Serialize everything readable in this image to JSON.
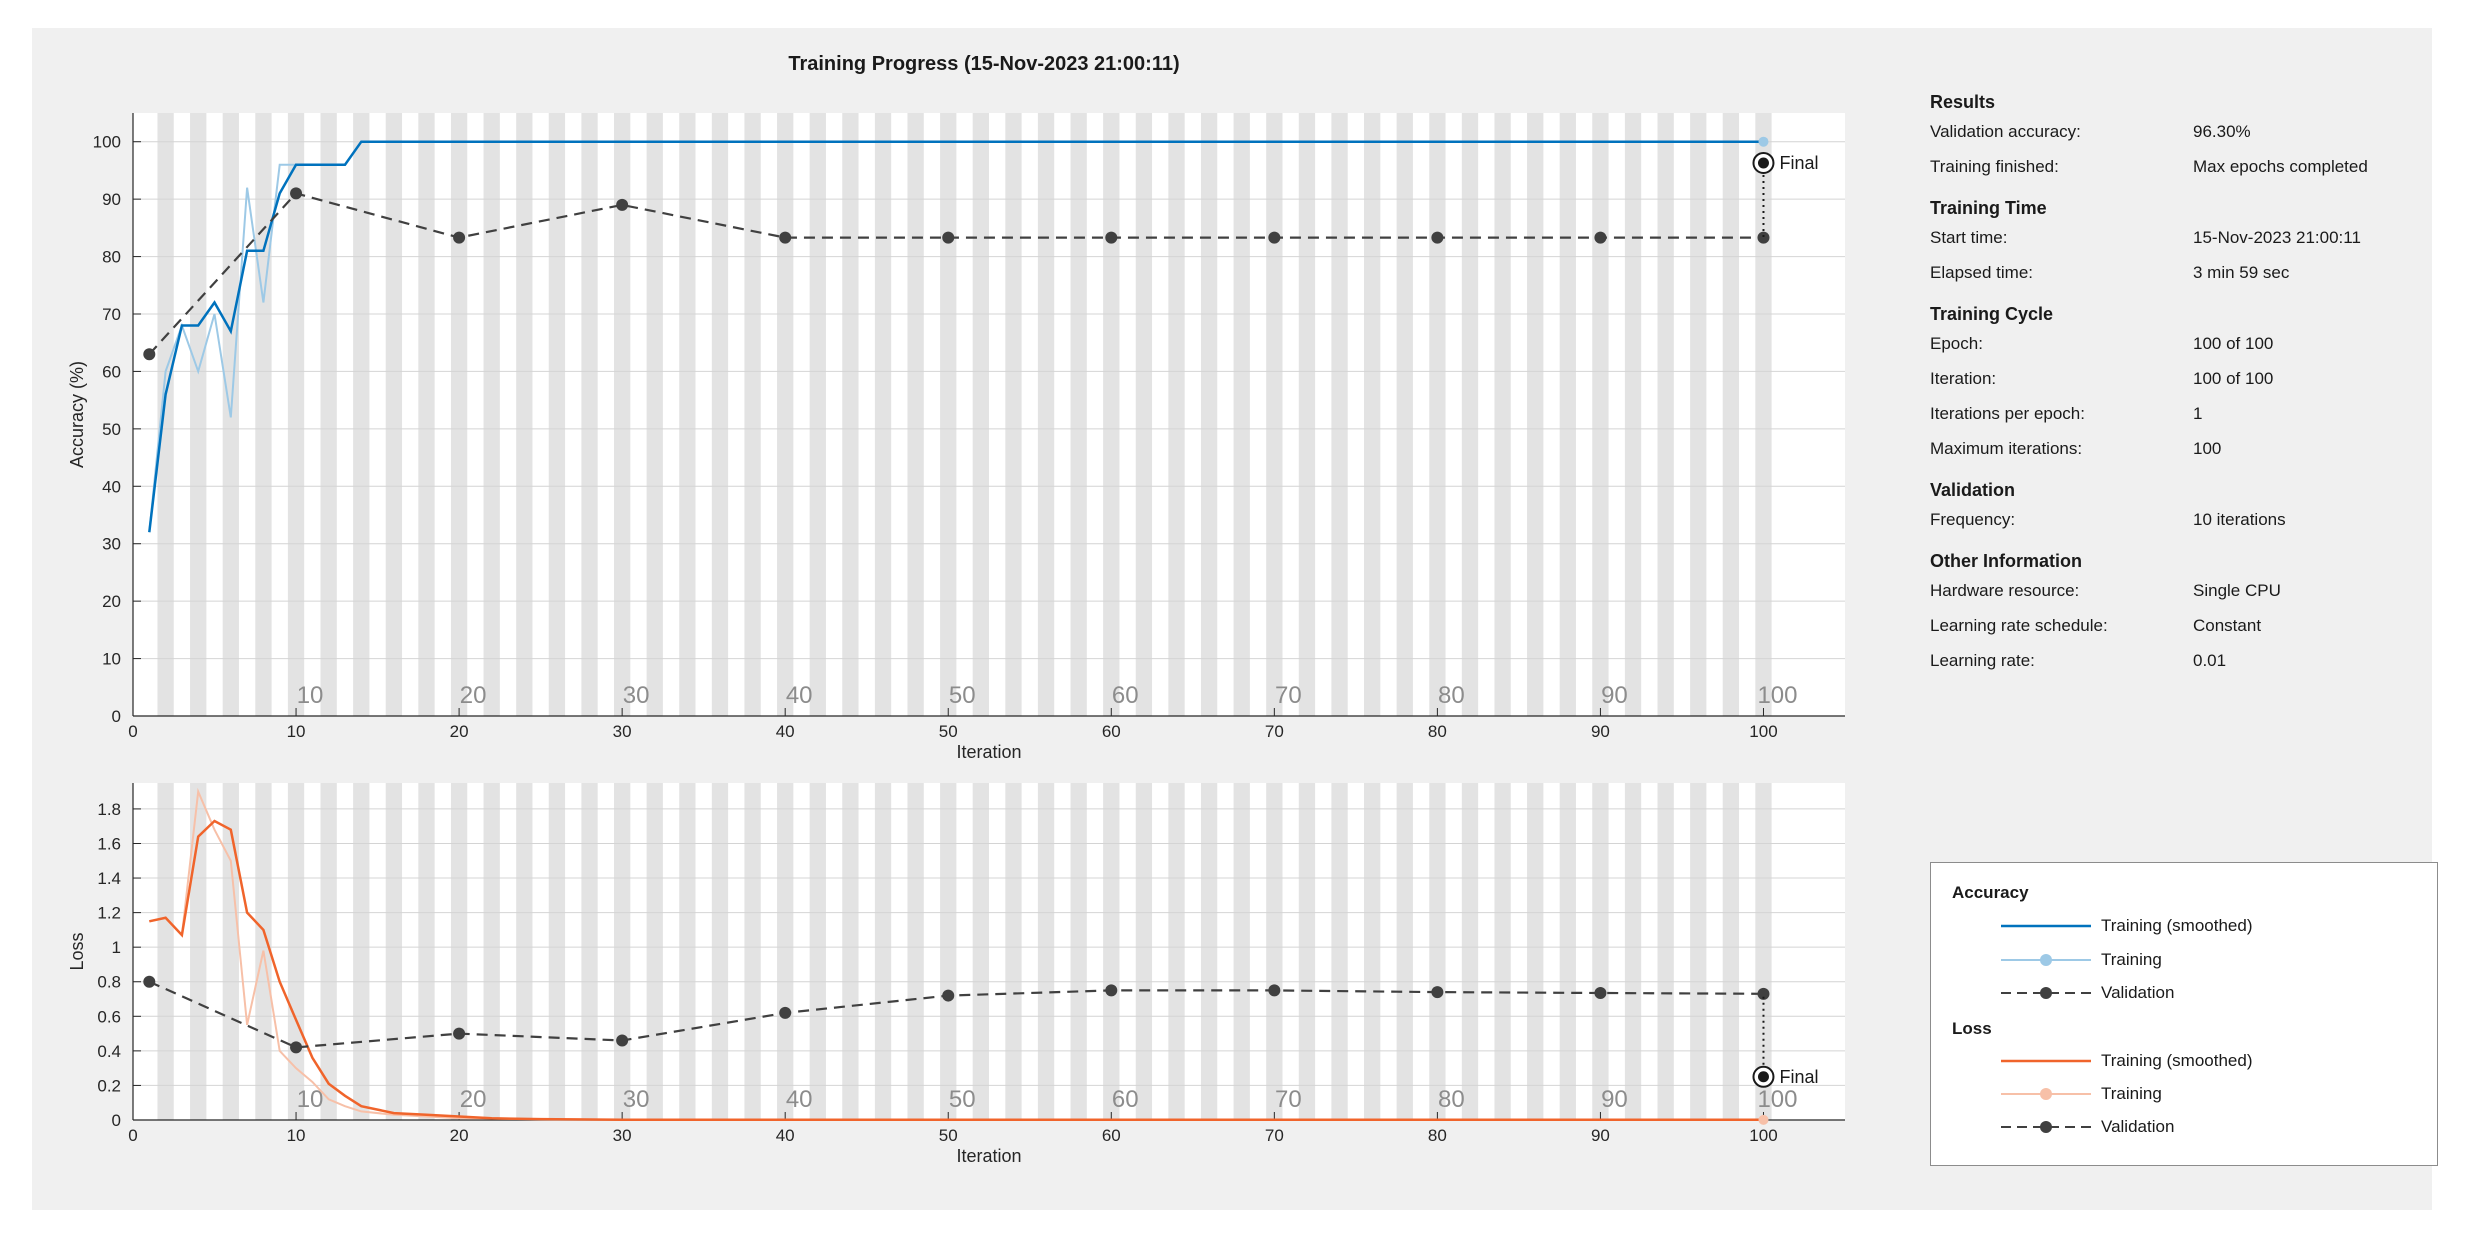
{
  "title": "Training Progress (15-Nov-2023 21:00:11)",
  "colors": {
    "accuracy_smoothed": "#0072bd",
    "accuracy_training": "#9dc9e6",
    "loss_smoothed": "#f0642b",
    "loss_training": "#f7c0a8",
    "validation": "#404040",
    "epoch_band": "#e3e3e3"
  },
  "chart_data": [
    {
      "type": "line",
      "name": "accuracy",
      "xlabel": "Iteration",
      "ylabel": "Accuracy (%)",
      "xlim": [
        0,
        105
      ],
      "ylim": [
        0,
        105
      ],
      "xticks": [
        0,
        10,
        20,
        30,
        40,
        50,
        60,
        70,
        80,
        90,
        100
      ],
      "yticks": [
        0,
        10,
        20,
        30,
        40,
        50,
        60,
        70,
        80,
        90,
        100
      ],
      "epoch_labels": [
        "10",
        "20",
        "30",
        "40",
        "50",
        "60",
        "70",
        "80",
        "90",
        "100"
      ],
      "final_label": "Final",
      "final_value": 96.3,
      "series": [
        {
          "name": "Training (smoothed)",
          "x": [
            1,
            2,
            3,
            4,
            5,
            6,
            7,
            8,
            9,
            10,
            11,
            12,
            13,
            14,
            100
          ],
          "y": [
            32,
            56,
            68,
            68,
            72,
            67,
            81,
            81,
            91,
            96,
            96,
            96,
            96,
            100,
            100
          ]
        },
        {
          "name": "Training",
          "x": [
            1,
            2,
            3,
            4,
            5,
            6,
            7,
            8,
            9,
            10,
            11,
            12,
            13,
            14,
            100
          ],
          "y": [
            32,
            60,
            68,
            60,
            70,
            52,
            92,
            72,
            96,
            96,
            96,
            96,
            96,
            100,
            100
          ]
        },
        {
          "name": "Validation",
          "x": [
            1,
            10,
            20,
            30,
            40,
            50,
            60,
            70,
            80,
            90,
            100
          ],
          "y": [
            63,
            91,
            83.3,
            89,
            83.3,
            83.3,
            83.3,
            83.3,
            83.3,
            83.3,
            83.3
          ]
        }
      ]
    },
    {
      "type": "line",
      "name": "loss",
      "xlabel": "Iteration",
      "ylabel": "Loss",
      "xlim": [
        0,
        105
      ],
      "ylim": [
        0,
        1.95
      ],
      "xticks": [
        0,
        10,
        20,
        30,
        40,
        50,
        60,
        70,
        80,
        90,
        100
      ],
      "yticks": [
        0,
        0.2,
        0.4,
        0.6,
        0.8,
        1,
        1.2,
        1.4,
        1.6,
        1.8
      ],
      "ytick_labels": [
        "0",
        "0.2",
        "0.4",
        "0.6",
        "0.8",
        "1",
        "1.2",
        "1.4",
        "1.6",
        "1.8"
      ],
      "epoch_labels": [
        "10",
        "20",
        "30",
        "40",
        "50",
        "60",
        "70",
        "80",
        "90",
        "100"
      ],
      "final_label": "Final",
      "final_value": 0.25,
      "series": [
        {
          "name": "Training (smoothed)",
          "x": [
            1,
            2,
            3,
            4,
            5,
            6,
            7,
            8,
            9,
            10,
            11,
            12,
            13,
            14,
            16,
            18,
            20,
            22,
            25,
            30,
            40,
            50,
            60,
            70,
            80,
            90,
            100
          ],
          "y": [
            1.15,
            1.17,
            1.07,
            1.64,
            1.73,
            1.68,
            1.2,
            1.1,
            0.8,
            0.58,
            0.36,
            0.21,
            0.14,
            0.08,
            0.04,
            0.03,
            0.02,
            0.01,
            0.005,
            0.002,
            0.001,
            0.001,
            0.001,
            0.001,
            0.001,
            0.001,
            0.001
          ]
        },
        {
          "name": "Training",
          "x": [
            1,
            2,
            3,
            4,
            5,
            6,
            7,
            8,
            9,
            10,
            11,
            12,
            13,
            14,
            16,
            18,
            20,
            25,
            30,
            40,
            50,
            60,
            70,
            80,
            90,
            100
          ],
          "y": [
            1.15,
            1.17,
            1.07,
            1.9,
            1.68,
            1.5,
            0.55,
            0.98,
            0.4,
            0.3,
            0.22,
            0.12,
            0.08,
            0.05,
            0.03,
            0.02,
            0.01,
            0.005,
            0.002,
            0.001,
            0.001,
            0.001,
            0.001,
            0.001,
            0.001,
            0.001
          ]
        },
        {
          "name": "Validation",
          "x": [
            1,
            10,
            20,
            30,
            40,
            50,
            60,
            70,
            80,
            90,
            100
          ],
          "y": [
            0.8,
            0.42,
            0.5,
            0.46,
            0.62,
            0.72,
            0.75,
            0.75,
            0.74,
            0.735,
            0.73
          ]
        }
      ]
    }
  ],
  "results": {
    "sections": [
      {
        "title": "Results",
        "rows": [
          {
            "key": "Validation accuracy:",
            "value": "96.30%"
          },
          {
            "key": "Training finished:",
            "value": "Max epochs completed"
          }
        ]
      },
      {
        "title": "Training Time",
        "rows": [
          {
            "key": "Start time:",
            "value": "15-Nov-2023 21:00:11"
          },
          {
            "key": "Elapsed time:",
            "value": "3 min 59 sec"
          }
        ]
      },
      {
        "title": "Training Cycle",
        "rows": [
          {
            "key": "Epoch:",
            "value": "100 of 100"
          },
          {
            "key": "Iteration:",
            "value": "100 of 100"
          },
          {
            "key": "Iterations per epoch:",
            "value": "1"
          },
          {
            "key": "Maximum iterations:",
            "value": "100"
          }
        ]
      },
      {
        "title": "Validation",
        "rows": [
          {
            "key": "Frequency:",
            "value": "10 iterations"
          }
        ]
      },
      {
        "title": "Other Information",
        "rows": [
          {
            "key": "Hardware resource:",
            "value": "Single CPU"
          },
          {
            "key": "Learning rate schedule:",
            "value": "Constant"
          },
          {
            "key": "Learning rate:",
            "value": "0.01"
          }
        ]
      }
    ]
  },
  "legend": {
    "accuracy_title": "Accuracy",
    "loss_title": "Loss",
    "items": [
      "Training (smoothed)",
      "Training",
      "Validation"
    ]
  }
}
